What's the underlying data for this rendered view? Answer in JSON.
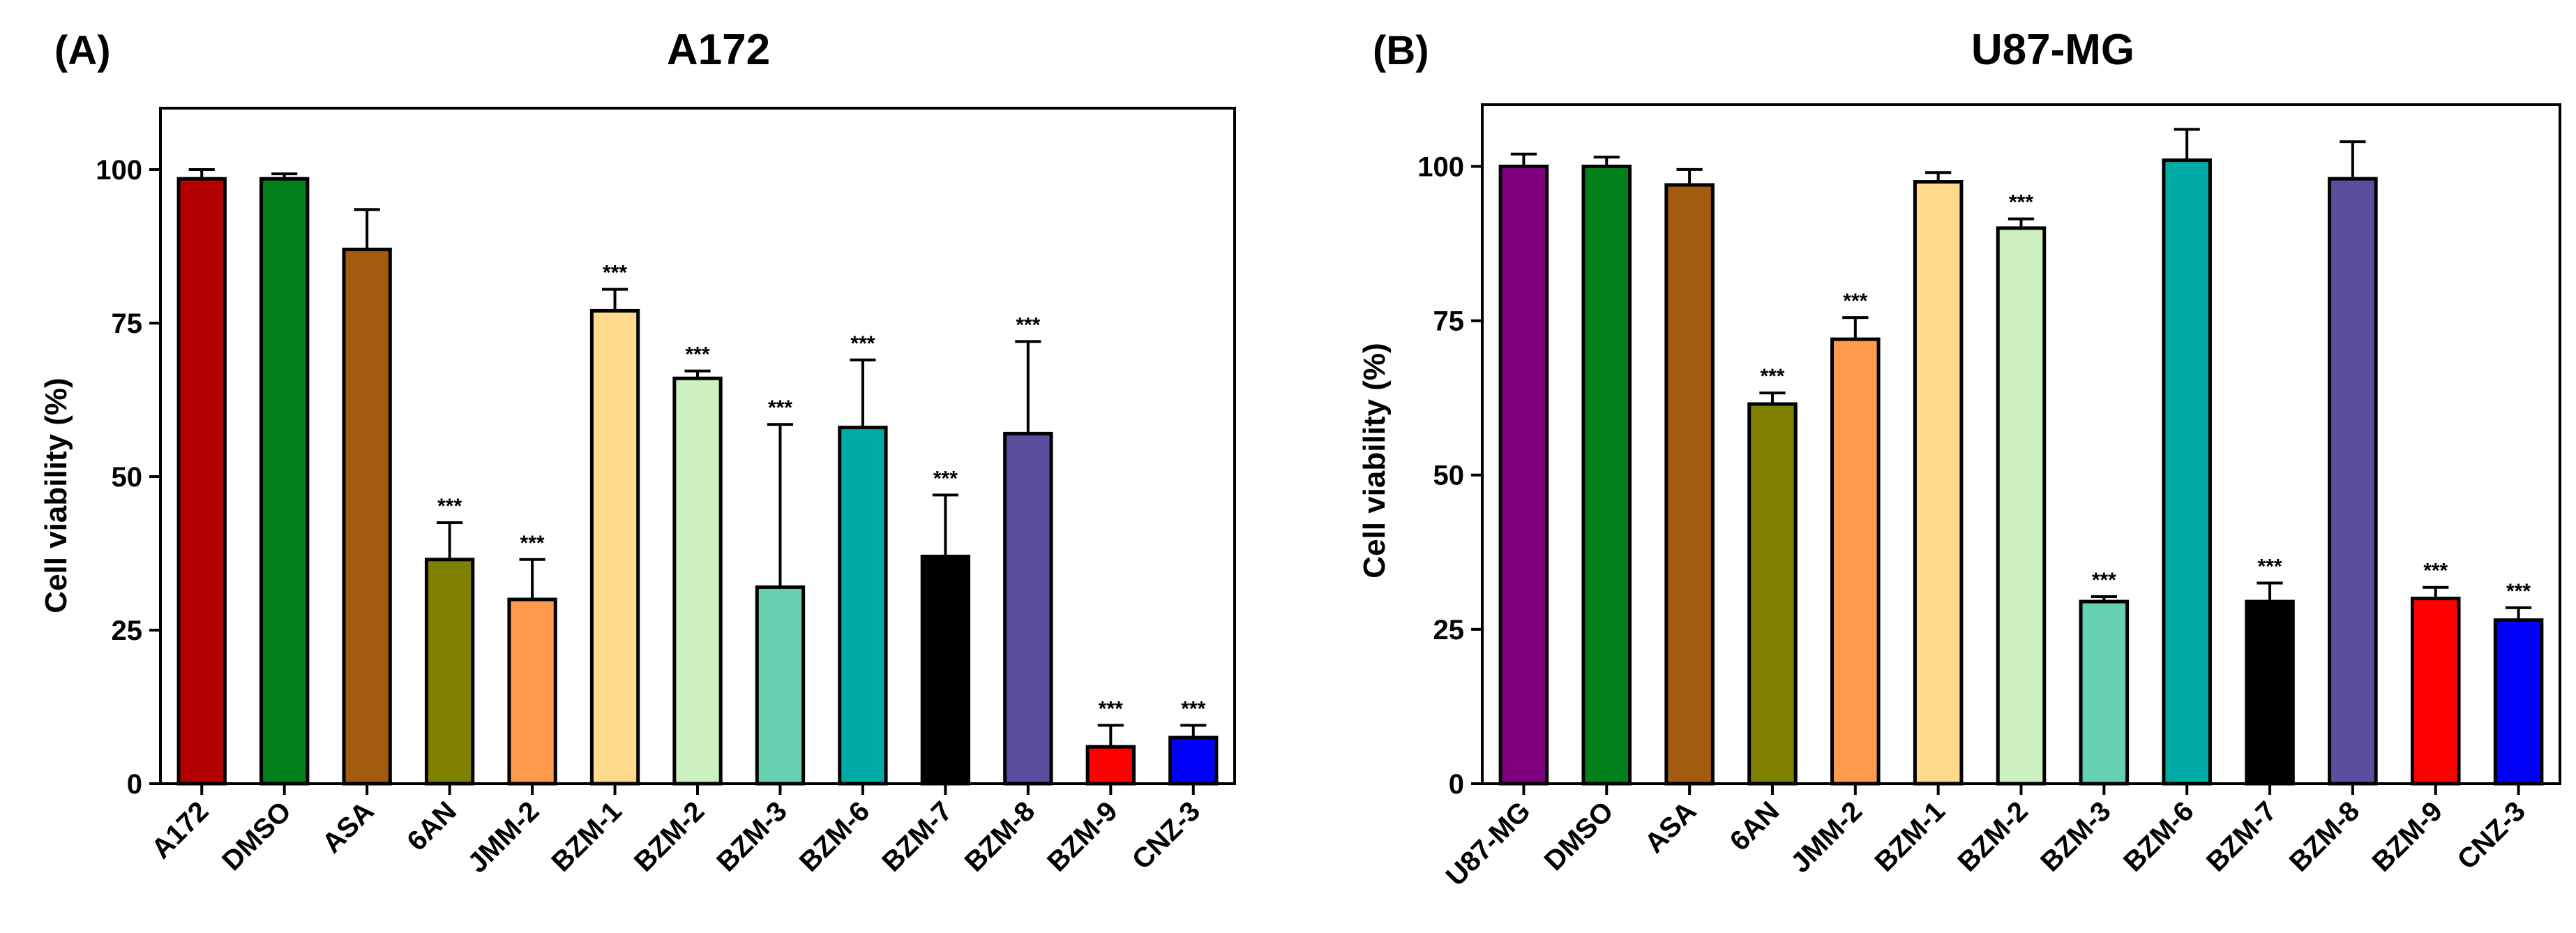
{
  "chart_data": [
    {
      "type": "bar",
      "panel_label": "(A)",
      "title": "A172",
      "ylabel": "Cell viability (%)",
      "xlabel": "",
      "ylim": [
        0,
        110
      ],
      "yticks": [
        0,
        25,
        50,
        75,
        100
      ],
      "grid": false,
      "legend": "none",
      "categories": [
        "A172",
        "DMSO",
        "ASA",
        "6AN",
        "JMM-2",
        "BZM-1",
        "BZM-2",
        "BZM-3",
        "BZM-6",
        "BZM-7",
        "BZM-8",
        "BZM-9",
        "CNZ-3"
      ],
      "values": [
        98.5,
        98.5,
        87,
        36.5,
        30,
        77,
        66,
        32,
        58,
        37,
        57,
        6,
        7.5
      ],
      "errors": [
        1.5,
        0.8,
        6.5,
        6,
        6.5,
        3.5,
        1.2,
        26.5,
        11,
        10,
        15,
        3.5,
        2
      ],
      "significance": [
        "",
        "",
        "",
        "***",
        "***",
        "***",
        "***",
        "***",
        "***",
        "***",
        "***",
        "***",
        "***"
      ],
      "colors": [
        "#b30000",
        "#007f1a",
        "#a35c0f",
        "#7f7f00",
        "#ff9a4d",
        "#ffd98c",
        "#ccf0bf",
        "#66d1b0",
        "#00aaa5",
        "#000000",
        "#5c4d9e",
        "#ff0000",
        "#0000ff"
      ]
    },
    {
      "type": "bar",
      "panel_label": "(B)",
      "title": "U87-MG",
      "ylabel": "Cell viability (%)",
      "xlabel": "",
      "ylim": [
        0,
        110
      ],
      "yticks": [
        0,
        25,
        50,
        75,
        100
      ],
      "grid": false,
      "legend": "none",
      "categories": [
        "U87-MG",
        "DMSO",
        "ASA",
        "6AN",
        "JMM-2",
        "BZM-1",
        "BZM-2",
        "BZM-3",
        "BZM-6",
        "BZM-7",
        "BZM-8",
        "BZM-9",
        "CNZ-3"
      ],
      "values": [
        100,
        100,
        97,
        61.5,
        72,
        97.5,
        90,
        29.5,
        101,
        29.5,
        98,
        30,
        26.5
      ],
      "errors": [
        2,
        1.5,
        2.5,
        1.8,
        3.5,
        1.5,
        1.5,
        0.8,
        5,
        3,
        6,
        1.8,
        2
      ],
      "significance": [
        "",
        "",
        "",
        "***",
        "***",
        "",
        "***",
        "***",
        "",
        "***",
        "",
        "***",
        "***"
      ],
      "colors": [
        "#800080",
        "#007f1a",
        "#a35c0f",
        "#7f7f00",
        "#ff9a4d",
        "#ffd98c",
        "#ccf0bf",
        "#66d1b0",
        "#00aaa5",
        "#000000",
        "#5c4d9e",
        "#ff0000",
        "#0000ff"
      ]
    }
  ]
}
